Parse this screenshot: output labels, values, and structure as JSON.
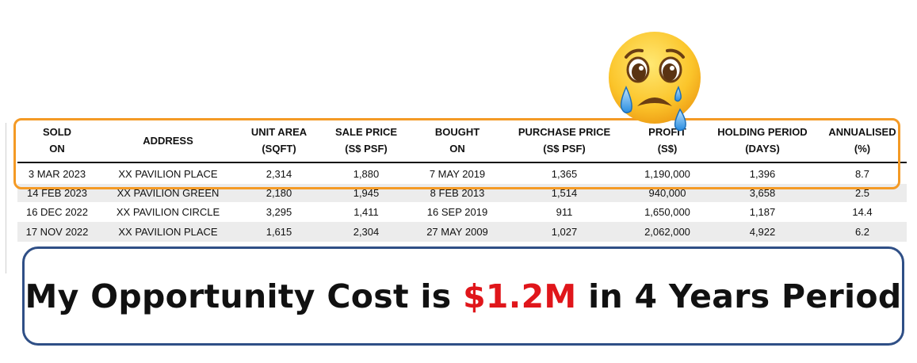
{
  "table": {
    "headers": [
      [
        "SOLD",
        "ON"
      ],
      [
        "ADDRESS",
        ""
      ],
      [
        "UNIT AREA",
        "(SQFT)"
      ],
      [
        "SALE PRICE",
        "(S$ PSF)"
      ],
      [
        "BOUGHT",
        "ON"
      ],
      [
        "PURCHASE PRICE",
        "(S$ PSF)"
      ],
      [
        "PROFIT",
        "(S$)"
      ],
      [
        "HOLDING PERIOD",
        "(DAYS)"
      ],
      [
        "ANNUALISED",
        "(%)"
      ]
    ],
    "rows": [
      [
        "3 MAR 2023",
        "XX PAVILION PLACE",
        "2,314",
        "1,880",
        "7 MAY 2019",
        "1,365",
        "1,190,000",
        "1,396",
        "8.7"
      ],
      [
        "14 FEB 2023",
        "XX PAVILION GREEN",
        "2,180",
        "1,945",
        "8 FEB 2013",
        "1,514",
        "940,000",
        "3,658",
        "2.5"
      ],
      [
        "16 DEC 2022",
        "XX PAVILION CIRCLE",
        "3,295",
        "1,411",
        "16 SEP 2019",
        "911",
        "1,650,000",
        "1,187",
        "14.4"
      ],
      [
        "17 NOV 2022",
        "XX PAVILION PLACE",
        "1,615",
        "2,304",
        "27 MAY 2009",
        "1,027",
        "2,062,000",
        "4,922",
        "6.2"
      ]
    ]
  },
  "callout": {
    "before": "My Opportunity Cost is ",
    "amount": "$1.2M",
    "after": " in 4 Years Period"
  },
  "colors": {
    "highlight": "#f49a25",
    "callout_border": "#2f4f86",
    "amount": "#e0161b",
    "zebra": "#ececec"
  },
  "icons": {
    "emoji": "crying-face-icon"
  }
}
